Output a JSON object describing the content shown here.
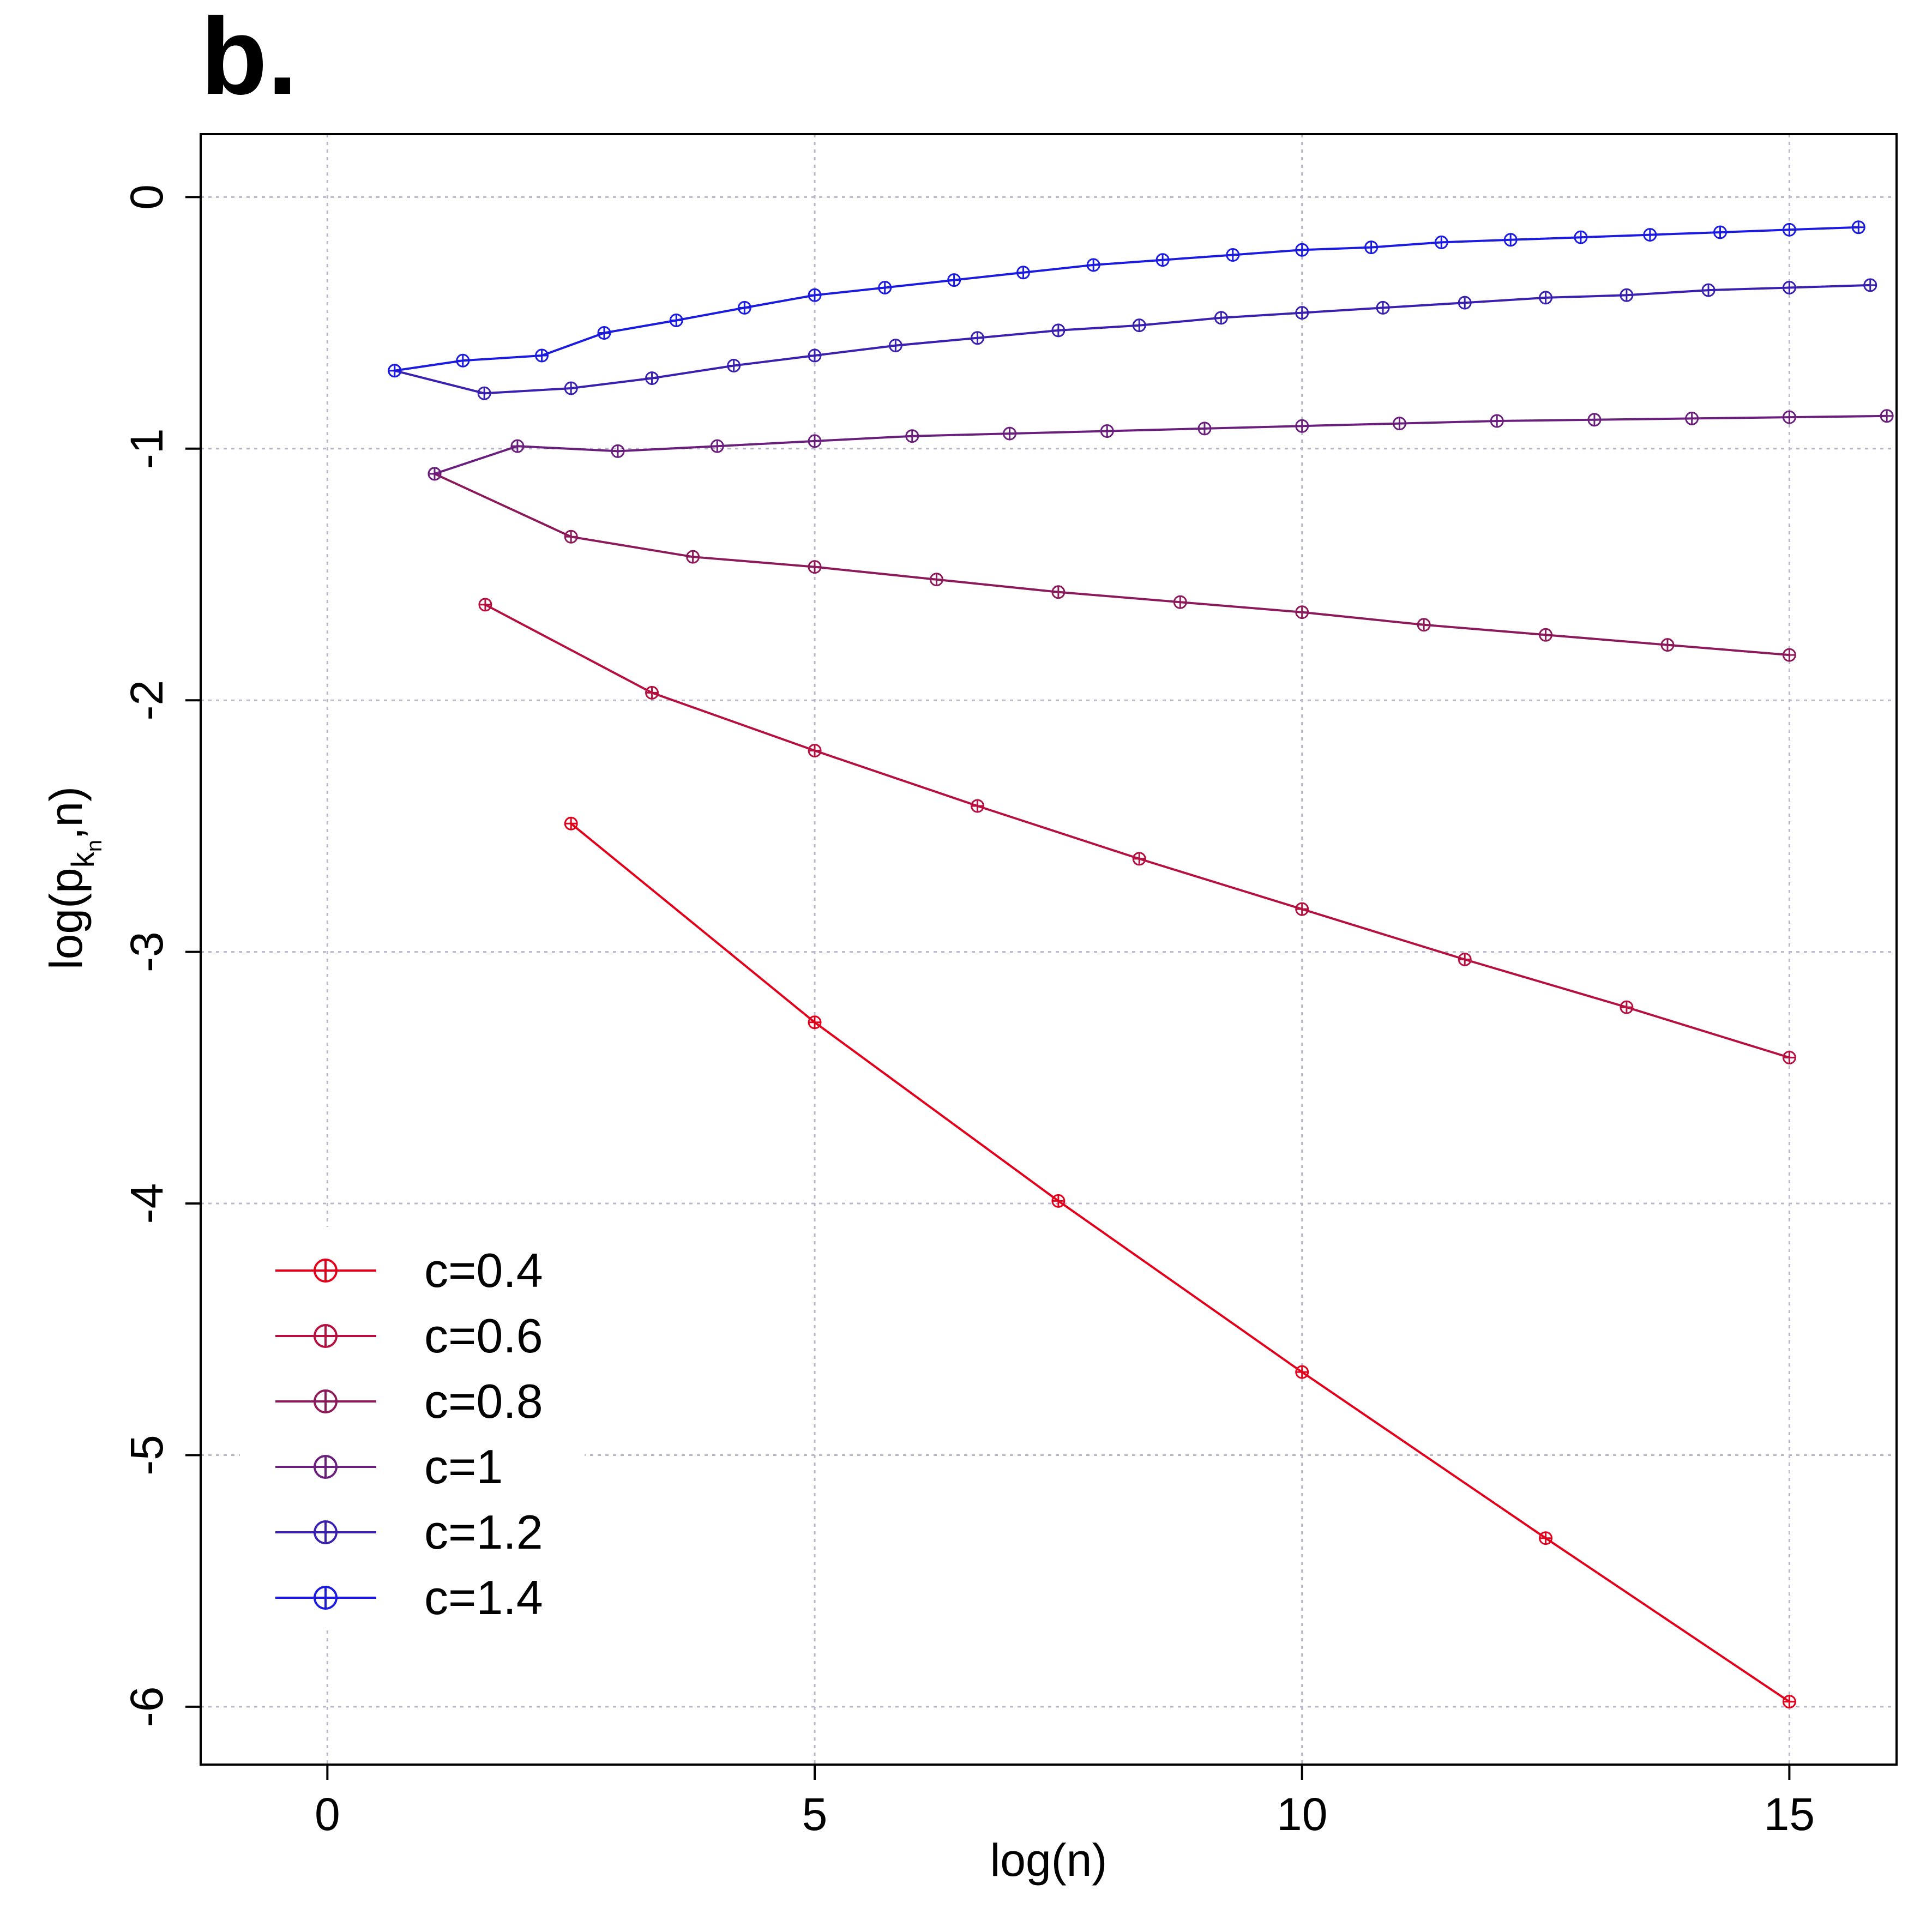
{
  "panel_label": "b.",
  "chart_data": {
    "type": "line",
    "title": "",
    "xlabel": "log(n)",
    "ylabel_main": "log(p",
    "ylabel_sub_k": "k",
    "ylabel_sub_n": "n",
    "ylabel_tail": ",n)",
    "xlim": [
      -1.3,
      16.1
    ],
    "ylim": [
      -6.23,
      0.25
    ],
    "xticks": [
      0,
      5,
      10,
      15
    ],
    "xtick_labels": [
      "0",
      "5",
      "10",
      "15"
    ],
    "yticks": [
      0,
      -1,
      -2,
      -3,
      -4,
      -5,
      -6
    ],
    "ytick_labels": [
      "0",
      "-1",
      "-2",
      "-3",
      "-4",
      "-5",
      "-6"
    ],
    "grid": true,
    "legend_position": "bottom-left",
    "series": [
      {
        "name": "c=0.4",
        "color": "#e3001b",
        "x": [
          2.5,
          5.0,
          7.5,
          10.0,
          12.5,
          15.0
        ],
        "y": [
          -2.49,
          -3.28,
          -3.99,
          -4.67,
          -5.33,
          -5.98
        ]
      },
      {
        "name": "c=0.6",
        "color": "#b5103f",
        "x": [
          1.62,
          3.33,
          5.0,
          6.67,
          8.33,
          10.0,
          11.67,
          13.33,
          15.0
        ],
        "y": [
          -1.62,
          -1.97,
          -2.2,
          -2.42,
          -2.63,
          -2.83,
          -3.03,
          -3.22,
          -3.42
        ]
      },
      {
        "name": "c=0.8",
        "color": "#8c1a5a",
        "x": [
          1.1,
          2.5,
          3.75,
          5.0,
          6.25,
          7.5,
          8.75,
          10.0,
          11.25,
          12.5,
          13.75,
          15.0
        ],
        "y": [
          -1.1,
          -1.35,
          -1.43,
          -1.47,
          -1.52,
          -1.57,
          -1.61,
          -1.65,
          -1.7,
          -1.74,
          -1.78,
          -1.82
        ]
      },
      {
        "name": "c=1",
        "color": "#6a1f7c",
        "x": [
          1.1,
          1.95,
          2.98,
          4.0,
          5.0,
          6.0,
          7.0,
          8.0,
          9.0,
          10.0,
          11.0,
          12.0,
          13.0,
          14.0,
          15.0,
          16.0
        ],
        "y": [
          -1.1,
          -0.99,
          -1.01,
          -0.99,
          -0.97,
          -0.95,
          -0.94,
          -0.93,
          -0.92,
          -0.91,
          -0.9,
          -0.89,
          -0.885,
          -0.88,
          -0.875,
          -0.87
        ]
      },
      {
        "name": "c=1.2",
        "color": "#3a1fb0",
        "x": [
          0.69,
          1.61,
          2.5,
          3.33,
          4.17,
          5.0,
          5.83,
          6.67,
          7.5,
          8.33,
          9.17,
          10.0,
          10.83,
          11.67,
          12.5,
          13.33,
          14.17,
          15.0,
          15.83
        ],
        "y": [
          -0.69,
          -0.78,
          -0.76,
          -0.72,
          -0.67,
          -0.63,
          -0.59,
          -0.56,
          -0.53,
          -0.51,
          -0.48,
          -0.46,
          -0.44,
          -0.42,
          -0.4,
          -0.39,
          -0.37,
          -0.36,
          -0.35
        ]
      },
      {
        "name": "c=1.4",
        "color": "#1a1ae0",
        "x": [
          0.69,
          1.39,
          2.2,
          2.84,
          3.58,
          4.28,
          5.0,
          5.72,
          6.43,
          7.14,
          7.86,
          8.57,
          9.29,
          10.0,
          10.71,
          11.43,
          12.14,
          12.86,
          13.57,
          14.29,
          15.0,
          15.71
        ],
        "y": [
          -0.69,
          -0.65,
          -0.63,
          -0.54,
          -0.49,
          -0.44,
          -0.39,
          -0.36,
          -0.33,
          -0.3,
          -0.27,
          -0.25,
          -0.23,
          -0.21,
          -0.2,
          -0.18,
          -0.17,
          -0.16,
          -0.15,
          -0.14,
          -0.13,
          -0.12
        ]
      }
    ]
  }
}
